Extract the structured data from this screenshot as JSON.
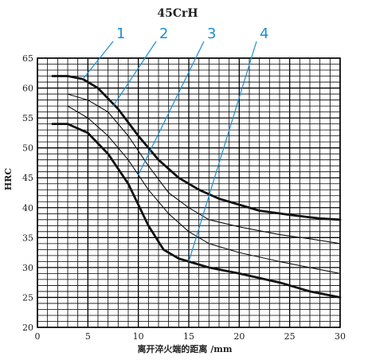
{
  "chart_data": {
    "type": "line",
    "title": "45CrH",
    "xlabel": "离开淬火端的距离 /mm",
    "ylabel": "HRC",
    "xlim": [
      0,
      30
    ],
    "ylim": [
      20,
      65
    ],
    "x_ticks": [
      "0",
      "5",
      "10",
      "15",
      "20",
      "25",
      "30"
    ],
    "y_ticks": [
      "20",
      "25",
      "30",
      "35",
      "40",
      "45",
      "50",
      "55",
      "60",
      "65"
    ],
    "grid": true,
    "series": [
      {
        "x": [
          1.5,
          3,
          4.5,
          6,
          8,
          10,
          12,
          14,
          16,
          18,
          20,
          22,
          25,
          28,
          30
        ],
        "y": [
          62,
          62,
          61.5,
          60,
          56.5,
          52,
          48,
          45,
          43,
          41.5,
          40.5,
          39.5,
          38.8,
          38.2,
          38
        ],
        "weight": "bold"
      },
      {
        "x": [
          3,
          5,
          7,
          9,
          11,
          13,
          15,
          17,
          20,
          24,
          27,
          30
        ],
        "y": [
          59,
          58,
          56,
          52,
          47,
          42.5,
          40,
          38,
          36.8,
          35.5,
          34.8,
          34
        ],
        "weight": "thin"
      },
      {
        "x": [
          3,
          5,
          7,
          9,
          11,
          13,
          15,
          17,
          20,
          24,
          27,
          30
        ],
        "y": [
          57,
          55,
          52,
          48,
          43,
          39,
          36,
          34,
          32.5,
          31,
          30,
          29
        ],
        "weight": "thin"
      },
      {
        "x": [
          1.5,
          3,
          5,
          7,
          9,
          11,
          12.5,
          14,
          15,
          17,
          20,
          24,
          27,
          30
        ],
        "y": [
          54,
          54,
          52.5,
          49,
          44,
          37,
          33,
          31.5,
          31,
          30,
          29,
          27.5,
          26,
          25
        ],
        "weight": "bold"
      }
    ],
    "callouts": [
      {
        "label": "1",
        "tx": 4.5,
        "ty": 61.5
      },
      {
        "label": "2",
        "tx": 7.5,
        "ty": 57
      },
      {
        "label": "3",
        "tx": 10,
        "ty": 45.5
      },
      {
        "label": "4",
        "tx": 15,
        "ty": 31
      }
    ]
  }
}
